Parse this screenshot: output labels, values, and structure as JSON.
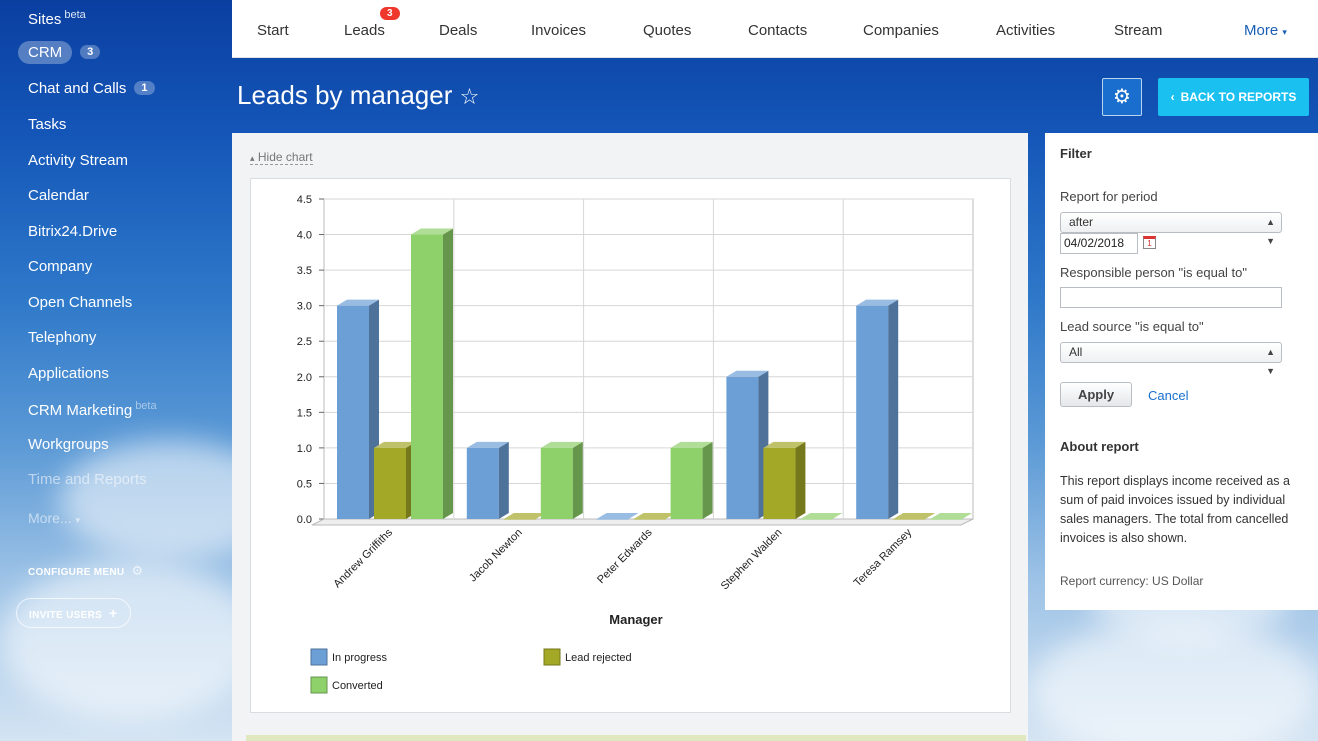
{
  "sidebar": {
    "sites": "Sites",
    "sites_sup": "beta",
    "crm": "CRM",
    "crm_badge": "3",
    "chat": "Chat and Calls",
    "chat_badge": "1",
    "tasks": "Tasks",
    "activity_stream": "Activity Stream",
    "calendar": "Calendar",
    "drive": "Bitrix24.Drive",
    "company": "Company",
    "open_channels": "Open Channels",
    "telephony": "Telephony",
    "applications": "Applications",
    "crm_marketing": "CRM Marketing",
    "crm_marketing_sup": "beta",
    "workgroups": "Workgroups",
    "time_reports": "Time and Reports",
    "more": "More...",
    "configure_menu": "CONFIGURE MENU",
    "invite_users": "INVITE USERS"
  },
  "topnav": {
    "start": "Start",
    "leads": "Leads",
    "leads_badge": "3",
    "deals": "Deals",
    "invoices": "Invoices",
    "quotes": "Quotes",
    "contacts": "Contacts",
    "companies": "Companies",
    "activities": "Activities",
    "stream": "Stream",
    "more": "More"
  },
  "header": {
    "title": "Leads by manager",
    "back_label": "BACK TO REPORTS"
  },
  "main": {
    "hide_chart": "Hide chart"
  },
  "filter": {
    "title": "Filter",
    "period_label": "Report for period",
    "period_value": "after",
    "date_value": "04/02/2018",
    "responsible_label": "Responsible person \"is equal to\"",
    "responsible_value": "",
    "source_label": "Lead source \"is equal to\"",
    "source_value": "All",
    "apply": "Apply",
    "cancel": "Cancel",
    "about_title": "About report",
    "about_text": "This report displays income received as a sum of paid invoices issued by individual sales managers. The total from cancelled invoices is also shown.",
    "currency": "Report currency: US Dollar"
  },
  "colors": {
    "in_progress": "#6c9fd6",
    "lead_rejected": "#a3a827",
    "converted": "#8ed06a",
    "accent": "#19c0f0"
  },
  "chart_data": {
    "type": "bar",
    "xlabel": "Manager",
    "ylabel": "",
    "ylim": [
      0,
      4.5
    ],
    "yticks": [
      "0.0",
      "0.5",
      "1.0",
      "1.5",
      "2.0",
      "2.5",
      "3.0",
      "3.5",
      "4.0",
      "4.5"
    ],
    "categories": [
      "Andrew Griffiths",
      "Jacob Newton",
      "Peter Edwards",
      "Stephen Walden",
      "Teresa Ramsey"
    ],
    "series": [
      {
        "name": "In progress",
        "values": [
          3,
          1,
          0,
          2,
          3
        ]
      },
      {
        "name": "Lead rejected",
        "values": [
          1,
          0,
          0,
          1,
          0
        ]
      },
      {
        "name": "Converted",
        "values": [
          4,
          1,
          1,
          0,
          0
        ]
      }
    ],
    "legend_position": "bottom"
  }
}
